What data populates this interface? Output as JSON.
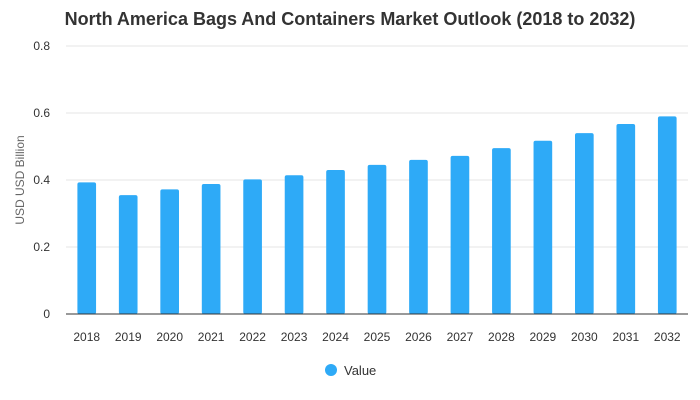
{
  "chart_data": {
    "type": "bar",
    "title": "North America Bags And Containers Market Outlook (2018 to 2032)",
    "xlabel": "",
    "ylabel": "USD USD Billion",
    "categories": [
      "2018",
      "2019",
      "2020",
      "2021",
      "2022",
      "2023",
      "2024",
      "2025",
      "2026",
      "2027",
      "2028",
      "2029",
      "2030",
      "2031",
      "2032"
    ],
    "series": [
      {
        "name": "Value",
        "color": "#2eaaf7",
        "values": [
          0.393,
          0.355,
          0.372,
          0.388,
          0.402,
          0.414,
          0.43,
          0.445,
          0.46,
          0.472,
          0.495,
          0.517,
          0.54,
          0.567,
          0.59
        ]
      }
    ],
    "ylim": [
      0,
      0.8
    ],
    "yticks": [
      "0",
      "0.2",
      "0.4",
      "0.6",
      "0.8"
    ],
    "grid": true,
    "legend_position": "bottom"
  }
}
